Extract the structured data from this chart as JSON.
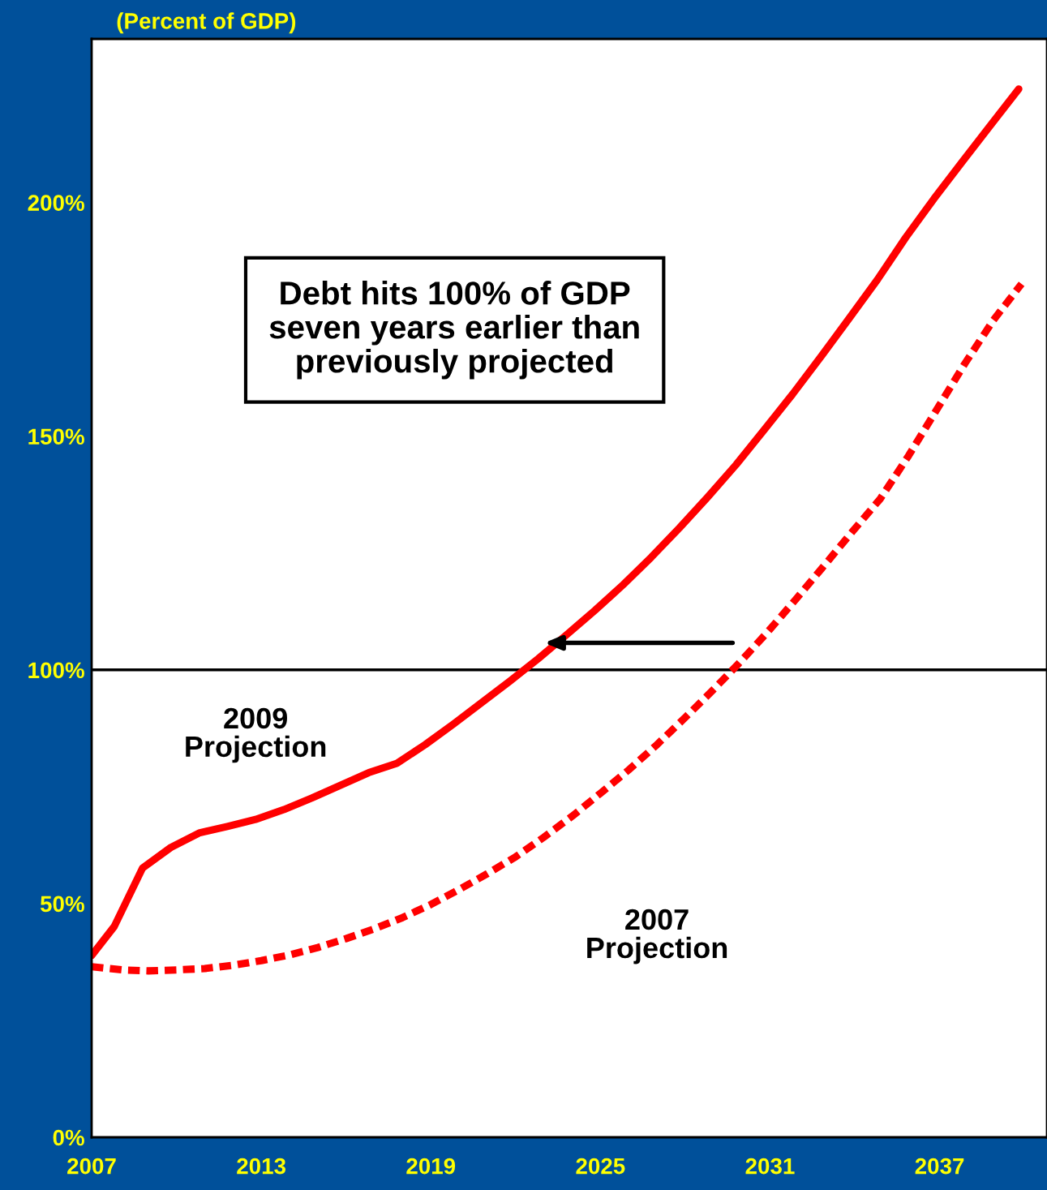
{
  "chart_data": {
    "type": "line",
    "ylabel": "(Percent of GDP)",
    "xlim": [
      2007,
      2040.8
    ],
    "xticks": [
      2007,
      2013,
      2019,
      2025,
      2031,
      2037
    ],
    "ylim": [
      0,
      235
    ],
    "yticks": [
      {
        "value": 0,
        "label": "0%"
      },
      {
        "value": 50,
        "label": "50%"
      },
      {
        "value": 100,
        "label": "100%"
      },
      {
        "value": 150,
        "label": "150%"
      },
      {
        "value": 200,
        "label": "200%"
      }
    ],
    "series": [
      {
        "name": "2009\nProjection",
        "color": "#ff0000",
        "line_style": "solid",
        "x": [
          2007,
          2007.8,
          2008.8,
          2009.8,
          2010.8,
          2011.8,
          2012.8,
          2013.8,
          2014.8,
          2015.8,
          2016.8,
          2017.8,
          2018.8,
          2019.8,
          2020.8,
          2021.8,
          2022.8,
          2023.8,
          2024.8,
          2025.8,
          2026.8,
          2027.8,
          2028.8,
          2029.8,
          2030.8,
          2031.8,
          2032.8,
          2033.8,
          2034.8,
          2035.8,
          2036.8,
          2037.8,
          2038.8,
          2039.8
        ],
        "values": [
          38.9,
          45.1,
          57.6,
          62,
          65.1,
          66.5,
          68,
          70.1,
          72.6,
          75.3,
          78,
          80,
          84,
          88.4,
          93,
          97.6,
          102.4,
          107.5,
          112.7,
          118.2,
          124.1,
          130.4,
          137,
          143.9,
          151.4,
          159,
          167,
          175.2,
          183.5,
          192.5,
          200.8,
          208.7,
          216.5,
          224.3
        ]
      },
      {
        "name": "2007\nProjection",
        "color": "#ff0000",
        "line_style": "dashed",
        "x": [
          2007,
          2008.1,
          2009,
          2010,
          2011,
          2012,
          2013,
          2014,
          2015,
          2016,
          2017,
          2018,
          2019,
          2020,
          2021,
          2022,
          2023,
          2024,
          2025,
          2026,
          2027,
          2028,
          2029,
          2029.9,
          2030.9,
          2031.9,
          2032.9,
          2033.9,
          2034.9,
          2035.9,
          2036.9,
          2037.9,
          2038.9,
          2039.9
        ],
        "values": [
          36.5,
          35.8,
          35.6,
          35.8,
          36.1,
          36.8,
          37.8,
          39,
          40.6,
          42.5,
          44.6,
          47,
          49.8,
          53,
          56.4,
          60,
          64.2,
          68.7,
          73.6,
          78.6,
          84,
          89.8,
          95.8,
          101.4,
          108,
          115,
          122.2,
          129.5,
          136.6,
          145.8,
          155.7,
          165.6,
          174.8,
          182.6
        ]
      }
    ],
    "ref_lines": [
      {
        "axis": "y",
        "value": 100,
        "color": "#000000"
      }
    ],
    "annotations": [
      "Debt hits 100% of GDP\nseven years earlier than\npreviously projected"
    ],
    "grid": false
  }
}
